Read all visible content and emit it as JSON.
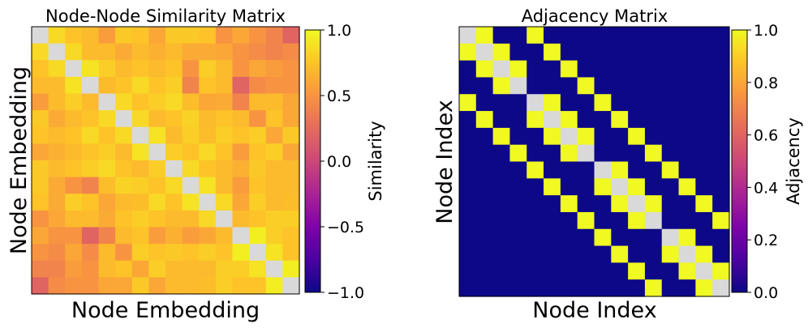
{
  "chart_data": [
    {
      "type": "heatmap",
      "title": "Node-Node Similarity Matrix",
      "xlabel": "Node Embedding",
      "ylabel": "Node Embedding",
      "colormap": "plasma",
      "diagonal_color": "#d9d9d9",
      "size": 16,
      "colorbar": {
        "label": "Similarity",
        "range": [
          -1.0,
          1.0
        ],
        "ticks": [
          1.0,
          0.5,
          0.0,
          -0.5,
          -1.0
        ],
        "tick_labels": [
          "1.0",
          "0.5",
          "0.0",
          "−0.5",
          "−1.0"
        ]
      },
      "values": [
        [
          null,
          0.85,
          0.75,
          0.7,
          0.55,
          0.78,
          0.75,
          0.6,
          0.78,
          0.78,
          0.75,
          0.5,
          0.6,
          0.5,
          0.4,
          0.2
        ],
        [
          0.85,
          null,
          0.85,
          0.7,
          0.7,
          0.62,
          0.7,
          0.65,
          0.7,
          0.62,
          0.62,
          0.6,
          0.5,
          0.45,
          0.4,
          0.45
        ],
        [
          0.75,
          0.85,
          null,
          0.9,
          0.8,
          0.7,
          0.75,
          0.7,
          0.75,
          0.5,
          0.8,
          0.7,
          0.5,
          0.6,
          0.55,
          0.5
        ],
        [
          0.7,
          0.7,
          0.9,
          null,
          0.7,
          0.75,
          0.85,
          0.75,
          0.8,
          0.4,
          0.75,
          0.7,
          0.2,
          0.45,
          0.5,
          0.5
        ],
        [
          0.55,
          0.7,
          0.8,
          0.7,
          null,
          0.85,
          0.75,
          0.8,
          0.85,
          0.72,
          0.6,
          0.62,
          0.4,
          0.7,
          0.7,
          0.6
        ],
        [
          0.78,
          0.62,
          0.7,
          0.75,
          0.85,
          null,
          0.85,
          0.7,
          0.75,
          0.82,
          0.7,
          0.75,
          0.7,
          0.5,
          0.75,
          0.6
        ],
        [
          0.75,
          0.7,
          0.75,
          0.85,
          0.75,
          0.85,
          null,
          0.9,
          0.7,
          0.8,
          0.72,
          0.8,
          0.75,
          0.8,
          0.6,
          0.78
        ],
        [
          0.6,
          0.65,
          0.7,
          0.75,
          0.8,
          0.7,
          0.9,
          null,
          0.8,
          0.75,
          0.85,
          0.75,
          0.55,
          0.75,
          0.8,
          0.6
        ],
        [
          0.78,
          0.7,
          0.75,
          0.8,
          0.85,
          0.75,
          0.7,
          0.8,
          null,
          0.85,
          0.75,
          0.7,
          0.65,
          0.78,
          0.7,
          0.7
        ],
        [
          0.78,
          0.62,
          0.5,
          0.4,
          0.72,
          0.82,
          0.8,
          0.75,
          0.85,
          null,
          0.9,
          0.7,
          0.55,
          0.75,
          0.7,
          0.7
        ],
        [
          0.75,
          0.62,
          0.8,
          0.75,
          0.6,
          0.7,
          0.72,
          0.85,
          0.75,
          0.9,
          null,
          0.85,
          0.6,
          0.8,
          0.7,
          0.72
        ],
        [
          0.5,
          0.6,
          0.7,
          0.7,
          0.62,
          0.75,
          0.8,
          0.75,
          0.7,
          0.7,
          0.85,
          null,
          0.7,
          0.75,
          0.8,
          0.8
        ],
        [
          0.6,
          0.5,
          0.5,
          0.2,
          0.4,
          0.7,
          0.75,
          0.55,
          0.65,
          0.55,
          0.6,
          0.7,
          null,
          0.95,
          0.8,
          0.75
        ],
        [
          0.5,
          0.45,
          0.6,
          0.45,
          0.7,
          0.5,
          0.8,
          0.75,
          0.78,
          0.75,
          0.8,
          0.75,
          0.95,
          null,
          0.9,
          0.75
        ],
        [
          0.4,
          0.4,
          0.55,
          0.5,
          0.7,
          0.75,
          0.6,
          0.8,
          0.7,
          0.7,
          0.7,
          0.8,
          0.8,
          0.9,
          null,
          0.95
        ],
        [
          0.2,
          0.45,
          0.5,
          0.5,
          0.6,
          0.6,
          0.78,
          0.6,
          0.7,
          0.7,
          0.72,
          0.8,
          0.75,
          0.75,
          0.95,
          null
        ]
      ]
    },
    {
      "type": "heatmap",
      "title": "Adjacency Matrix",
      "xlabel": "Node Index",
      "ylabel": "Node Index",
      "colormap": "plasma",
      "diagonal_color": "#d9d9d9",
      "size": 16,
      "colorbar": {
        "label": "Adjacency",
        "range": [
          0.0,
          1.0
        ],
        "ticks": [
          1.0,
          0.8,
          0.6,
          0.4,
          0.2,
          0.0
        ],
        "tick_labels": [
          "1.0",
          "0.8",
          "0.6",
          "0.4",
          "0.2",
          "0.0"
        ]
      },
      "values": [
        [
          null,
          1,
          0,
          0,
          1,
          0,
          0,
          0,
          0,
          0,
          0,
          0,
          0,
          0,
          0,
          0
        ],
        [
          1,
          null,
          1,
          0,
          0,
          1,
          0,
          0,
          0,
          0,
          0,
          0,
          0,
          0,
          0,
          0
        ],
        [
          0,
          1,
          null,
          1,
          0,
          0,
          1,
          0,
          0,
          0,
          0,
          0,
          0,
          0,
          0,
          0
        ],
        [
          0,
          0,
          1,
          null,
          0,
          0,
          0,
          1,
          0,
          0,
          0,
          0,
          0,
          0,
          0,
          0
        ],
        [
          1,
          0,
          0,
          0,
          null,
          1,
          0,
          0,
          1,
          0,
          0,
          0,
          0,
          0,
          0,
          0
        ],
        [
          0,
          1,
          0,
          0,
          1,
          null,
          1,
          0,
          0,
          1,
          0,
          0,
          0,
          0,
          0,
          0
        ],
        [
          0,
          0,
          1,
          0,
          0,
          1,
          null,
          1,
          0,
          0,
          1,
          0,
          0,
          0,
          0,
          0
        ],
        [
          0,
          0,
          0,
          1,
          0,
          0,
          1,
          null,
          0,
          0,
          0,
          1,
          0,
          0,
          0,
          0
        ],
        [
          0,
          0,
          0,
          0,
          1,
          0,
          0,
          0,
          null,
          1,
          0,
          0,
          1,
          0,
          0,
          0
        ],
        [
          0,
          0,
          0,
          0,
          0,
          1,
          0,
          0,
          1,
          null,
          1,
          0,
          0,
          1,
          0,
          0
        ],
        [
          0,
          0,
          0,
          0,
          0,
          0,
          1,
          0,
          0,
          1,
          null,
          1,
          0,
          0,
          1,
          0
        ],
        [
          0,
          0,
          0,
          0,
          0,
          0,
          0,
          1,
          0,
          0,
          1,
          null,
          0,
          0,
          0,
          1
        ],
        [
          0,
          0,
          0,
          0,
          0,
          0,
          0,
          0,
          1,
          0,
          0,
          0,
          null,
          1,
          0,
          0
        ],
        [
          0,
          0,
          0,
          0,
          0,
          0,
          0,
          0,
          0,
          1,
          0,
          0,
          1,
          null,
          1,
          0
        ],
        [
          0,
          0,
          0,
          0,
          0,
          0,
          0,
          0,
          0,
          0,
          1,
          0,
          0,
          1,
          null,
          1
        ],
        [
          0,
          0,
          0,
          0,
          0,
          0,
          0,
          0,
          0,
          0,
          0,
          1,
          0,
          0,
          1,
          null
        ]
      ]
    }
  ]
}
